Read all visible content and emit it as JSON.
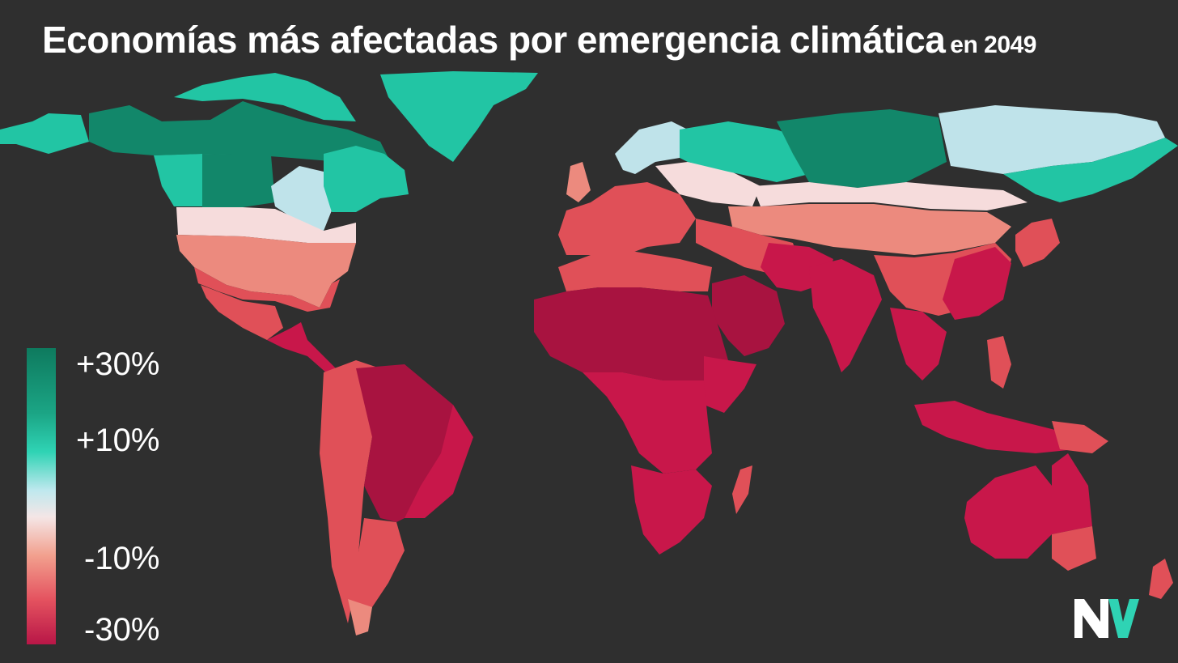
{
  "title": {
    "main": "Economías más afectadas por emergencia climática",
    "sub": "en 2049"
  },
  "legend": {
    "labels": [
      "+30%",
      "+10%",
      "-10%",
      "-30%"
    ],
    "colors": [
      "#0e7a5e",
      "#2fd3b4",
      "#bfe8ee",
      "#f4e6e6",
      "#f2a08e",
      "#e4525f",
      "#b81647"
    ]
  },
  "palette": {
    "background": "#2f2f2f",
    "green_dark": "#12876a",
    "green": "#22c5a4",
    "light_blue": "#bfe3ea",
    "pale": "#f6dcdc",
    "salmon": "#ec8a7e",
    "red": "#e05058",
    "crimson": "#c8174a",
    "dark_crimson": "#a81340"
  },
  "logo": {
    "icon": "nv-logo"
  }
}
